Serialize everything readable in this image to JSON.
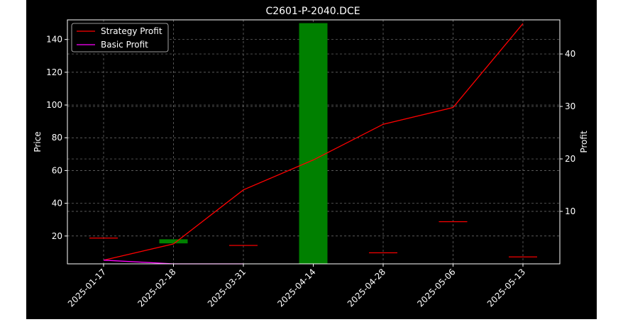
{
  "chart_data": {
    "type": "candlestick_with_lines",
    "title": "C2601-P-2040.DCE",
    "ylabel_left": "Price",
    "ylabel_right": "Profit",
    "categories": [
      "2025-01-17",
      "2025-02-18",
      "2025-03-31",
      "2025-04-14",
      "2025-04-28",
      "2025-05-06",
      "2025-05-13"
    ],
    "ylim_left": [
      3,
      152
    ],
    "yticks_left": [
      20,
      40,
      60,
      80,
      100,
      120,
      140
    ],
    "ylim_right": [
      0,
      46.5
    ],
    "yticks_right": [
      10,
      20,
      30,
      40
    ],
    "grid": true,
    "legend_position": "top-left",
    "candles": [
      {
        "date": "2025-01-17",
        "open": 19,
        "close": 19,
        "color": "#ff0000"
      },
      {
        "date": "2025-02-18",
        "open": 18,
        "close": 15.5,
        "color": "#008000"
      },
      {
        "date": "2025-03-31",
        "open": 14.5,
        "close": 14.5,
        "color": "#ff0000"
      },
      {
        "date": "2025-04-14",
        "open": 3,
        "close": 150,
        "color": "#008000"
      },
      {
        "date": "2025-04-28",
        "open": 10,
        "close": 10,
        "color": "#ff0000"
      },
      {
        "date": "2025-05-06",
        "open": 29,
        "close": 29,
        "color": "#ff0000"
      },
      {
        "date": "2025-05-13",
        "open": 7.5,
        "close": 7.5,
        "color": "#ff0000"
      }
    ],
    "series": [
      {
        "name": "Strategy Profit",
        "color": "#ff0000",
        "axis": "right",
        "values": [
          0.7,
          3.8,
          14.1,
          19.8,
          26.6,
          29.8,
          45.8
        ]
      },
      {
        "name": "Basic Profit",
        "color": "#ff00ff",
        "axis": "right",
        "values": [
          0.7,
          0.0,
          0.0,
          null,
          null,
          null,
          null
        ]
      }
    ]
  }
}
